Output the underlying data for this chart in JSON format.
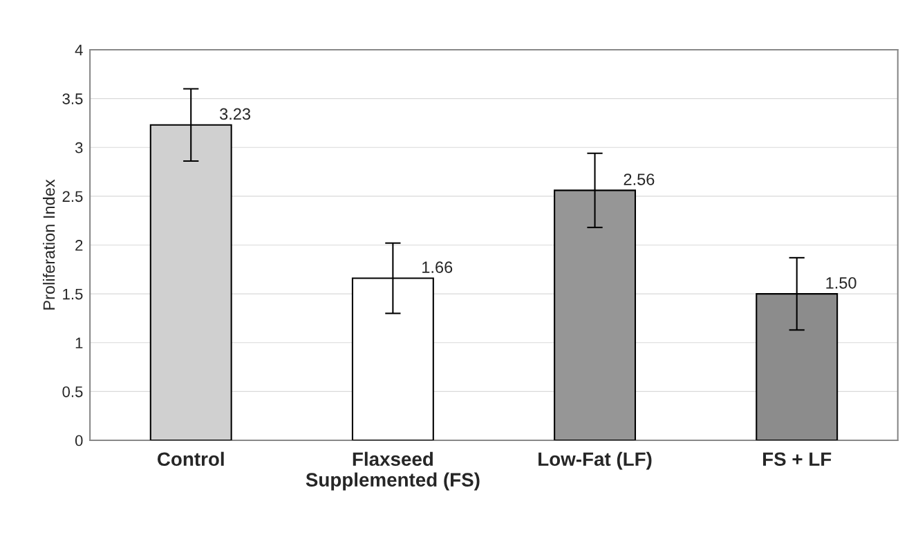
{
  "chart_data": {
    "type": "bar",
    "ylabel": "Proliferation Index",
    "categories": [
      "Control",
      "Flaxseed\nSupplemented (FS)",
      "Low-Fat (LF)",
      "FS + LF"
    ],
    "values": [
      3.23,
      1.66,
      2.56,
      1.5
    ],
    "colors": [
      "#d0d0d0",
      "#ffffff",
      "#969696",
      "#8c8c8c"
    ],
    "errors": [
      0.37,
      0.36,
      0.38,
      0.37
    ],
    "value_labels": [
      "3.23",
      "1.66",
      "2.56",
      "1.50"
    ],
    "ylim": [
      0,
      4
    ],
    "yticks": [
      0,
      0.5,
      1,
      1.5,
      2,
      2.5,
      3,
      3.5,
      4
    ],
    "grid": "y"
  }
}
